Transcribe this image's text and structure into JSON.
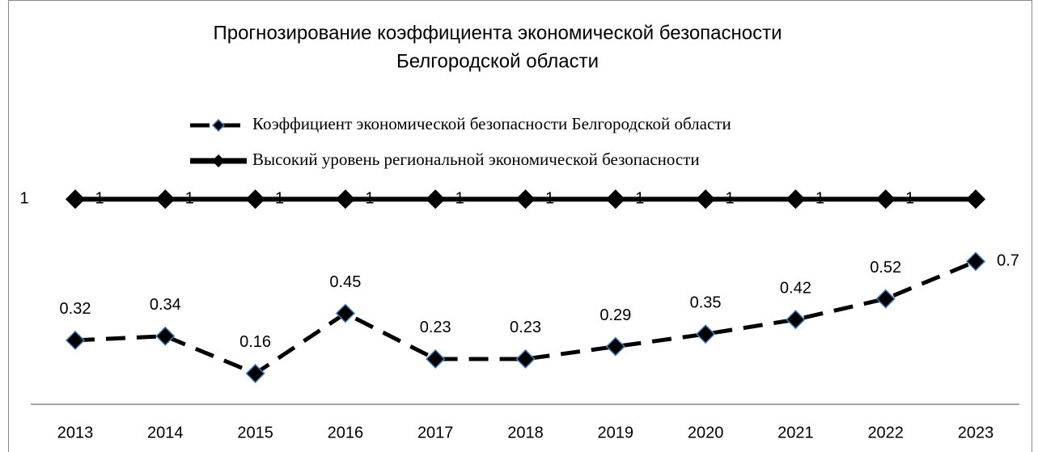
{
  "chart_data": {
    "type": "line",
    "title": [
      "Прогнозирование коэффициента экономической безопасности",
      "Белгородской области"
    ],
    "categories": [
      "2013",
      "2014",
      "2015",
      "2016",
      "2017",
      "2018",
      "2019",
      "2020",
      "2021",
      "2022",
      "2023"
    ],
    "series": [
      {
        "name": "Коэффициент экономической безопасности Белгородской области",
        "color": "#000000",
        "marker_edge": "#4a78b5",
        "dashed": true,
        "values": [
          0.32,
          0.34,
          0.16,
          0.45,
          0.23,
          0.23,
          0.29,
          0.35,
          0.42,
          0.52,
          0.7
        ]
      },
      {
        "name": "Высокий уровень региональной экономической безопасности",
        "color": "#000000",
        "marker_edge": "#000000",
        "dashed": false,
        "values": [
          1,
          1,
          1,
          1,
          1,
          1,
          1,
          1,
          1,
          1,
          1
        ],
        "value_labels": [
          "1",
          "1",
          "1",
          "1",
          "1",
          "1",
          "1",
          "1",
          "1",
          "1",
          null
        ]
      }
    ],
    "ylim": [
      0,
      1.2
    ],
    "yticks": [
      1
    ],
    "grid": false
  }
}
